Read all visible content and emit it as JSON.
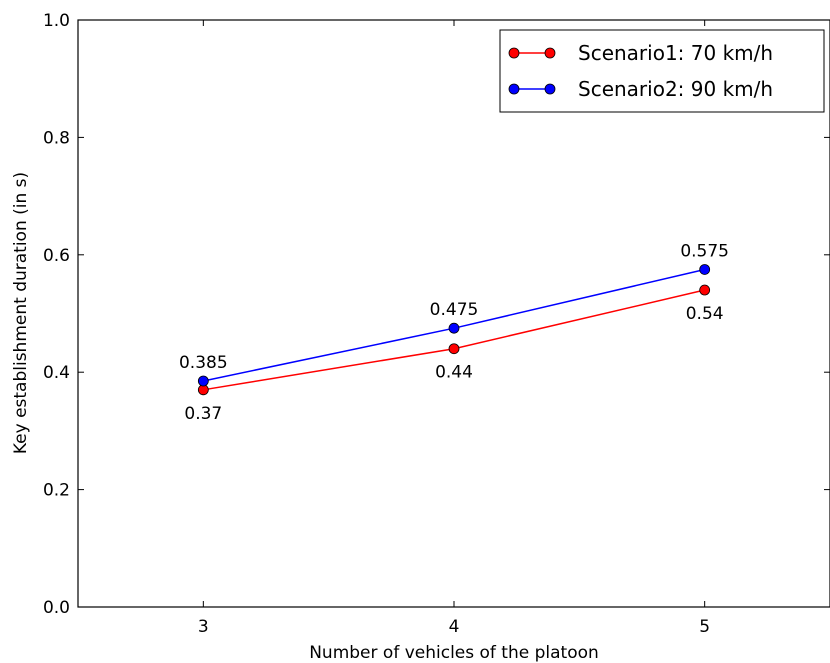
{
  "chart_data": {
    "type": "line",
    "title": "",
    "xlabel": "Number  of vehicles of the platoon",
    "ylabel": "Key establishment duration (in s)",
    "x": [
      3,
      4,
      5
    ],
    "xticks": [
      "3",
      "4",
      "5"
    ],
    "xlim": [
      2.5,
      5.5
    ],
    "ylim": [
      0.0,
      1.0
    ],
    "yticks": [
      "0.0",
      "0.2",
      "0.4",
      "0.6",
      "0.8",
      "1.0"
    ],
    "grid": false,
    "legend_position": "top-right",
    "series": [
      {
        "name": "Scenario1: 70 km/h",
        "color": "#ff0000",
        "values": [
          0.37,
          0.44,
          0.54
        ],
        "labels": [
          "0.37",
          "0.44",
          "0.54"
        ],
        "label_position": "below"
      },
      {
        "name": "Scenario2: 90 km/h",
        "color": "#0000ff",
        "values": [
          0.385,
          0.475,
          0.575
        ],
        "labels": [
          "0.385",
          "0.475",
          "0.575"
        ],
        "label_position": "above"
      }
    ]
  }
}
